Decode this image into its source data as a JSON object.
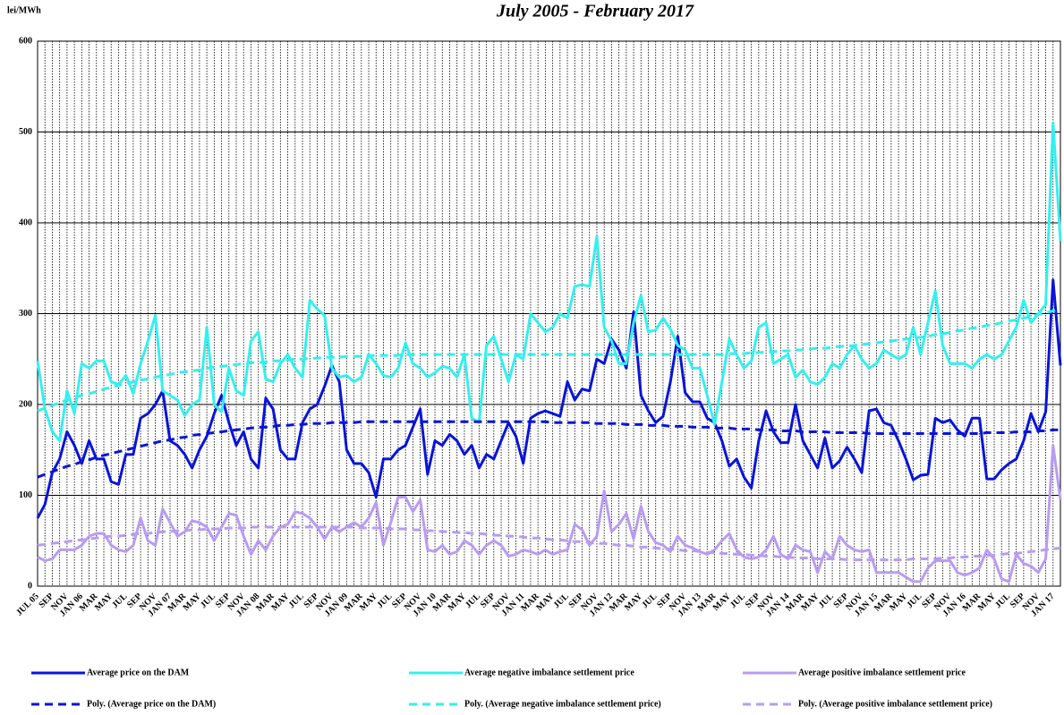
{
  "chart_data": {
    "type": "line",
    "title": "July 2005 - February 2017",
    "y_label": "lei/MWh",
    "ylim": [
      0,
      600
    ],
    "yticks": [
      0,
      100,
      200,
      300,
      400,
      500,
      600
    ],
    "grid": true,
    "categories": [
      "JUL 05",
      null,
      "SEP",
      null,
      "NOV",
      null,
      "JAN 06",
      null,
      "MAR",
      null,
      "MAY",
      null,
      "JUL",
      null,
      "SEP",
      null,
      "NOV",
      null,
      "JAN 07",
      null,
      "MAR",
      null,
      "MAY",
      null,
      "JUL",
      null,
      "SEP",
      null,
      "NOV",
      null,
      "JAN 08",
      null,
      "MAR",
      null,
      "MAY",
      null,
      "JUL",
      null,
      "SEP",
      null,
      "NOV",
      null,
      "JAN 09",
      null,
      "MAR",
      null,
      "MAY",
      null,
      "JUL",
      null,
      "SEP",
      null,
      "NOV",
      null,
      "JAN 10",
      null,
      "MAR",
      null,
      "MAY",
      null,
      "JUL",
      null,
      "SEP",
      null,
      "NOV",
      null,
      "JAN 11",
      null,
      "MAR",
      null,
      "MAY",
      null,
      "JUL",
      null,
      "SEP",
      null,
      "NOV",
      null,
      "JAN 12",
      null,
      "MAR",
      null,
      "MAY",
      null,
      "JUL",
      null,
      "SEP",
      null,
      "NOV",
      null,
      "JAN 13",
      null,
      "MAR",
      null,
      "MAY",
      null,
      "JUL",
      null,
      "SEP",
      null,
      "NOV",
      null,
      "JAN 14",
      null,
      "MAR",
      null,
      "MAY",
      null,
      "JUL",
      null,
      "SEP",
      null,
      "NOV",
      null,
      "JAN 15",
      null,
      "MAR",
      null,
      "MAY",
      null,
      "JUL",
      null,
      "SEP",
      null,
      "NOV",
      null,
      "JAN 16",
      null,
      "MAR",
      null,
      "MAY",
      null,
      "JUL",
      null,
      "SEP",
      null,
      "NOV",
      null,
      "JAN 17",
      null
    ],
    "series": [
      {
        "name": "Average price on the DAM",
        "color": "#0a14d8",
        "dashed": false,
        "values": [
          75,
          90,
          125,
          140,
          170,
          155,
          135,
          160,
          140,
          140,
          115,
          112,
          145,
          145,
          185,
          190,
          200,
          215,
          160,
          155,
          145,
          130,
          150,
          165,
          190,
          210,
          180,
          155,
          170,
          140,
          130,
          207,
          195,
          150,
          140,
          140,
          180,
          195,
          200,
          220,
          243,
          225,
          150,
          135,
          135,
          125,
          98,
          140,
          140,
          150,
          155,
          175,
          195,
          123,
          160,
          155,
          167,
          160,
          145,
          155,
          130,
          145,
          140,
          160,
          180,
          165,
          135,
          185,
          190,
          193,
          190,
          187,
          225,
          205,
          217,
          215,
          250,
          245,
          272,
          260,
          240,
          302,
          210,
          193,
          180,
          187,
          225,
          275,
          213,
          203,
          203,
          185,
          180,
          160,
          132,
          140,
          120,
          108,
          160,
          193,
          170,
          158,
          158,
          200,
          160,
          145,
          130,
          163,
          130,
          138,
          153,
          140,
          125,
          193,
          195,
          180,
          177,
          160,
          140,
          117,
          122,
          123,
          185,
          180,
          183,
          172,
          165,
          185,
          185,
          118,
          118,
          128,
          135,
          140,
          160,
          190,
          170,
          192,
          337,
          243
        ]
      },
      {
        "name": "Average negative imbalance settlement price",
        "color": "#33f0ee",
        "dashed": false,
        "values": [
          248,
          195,
          170,
          160,
          215,
          190,
          245,
          240,
          248,
          248,
          225,
          222,
          232,
          212,
          245,
          270,
          298,
          215,
          210,
          205,
          188,
          200,
          205,
          285,
          200,
          192,
          240,
          215,
          210,
          270,
          280,
          228,
          225,
          245,
          255,
          240,
          230,
          315,
          305,
          298,
          240,
          230,
          232,
          225,
          230,
          255,
          245,
          232,
          230,
          240,
          268,
          245,
          240,
          230,
          235,
          242,
          240,
          230,
          255,
          185,
          180,
          265,
          275,
          250,
          225,
          255,
          250,
          300,
          290,
          280,
          285,
          300,
          295,
          330,
          332,
          330,
          385,
          285,
          270,
          245,
          245,
          290,
          320,
          280,
          282,
          295,
          283,
          265,
          260,
          240,
          240,
          210,
          178,
          225,
          272,
          255,
          240,
          248,
          285,
          290,
          245,
          250,
          255,
          230,
          238,
          225,
          222,
          230,
          245,
          240,
          255,
          265,
          250,
          240,
          245,
          260,
          255,
          250,
          255,
          285,
          255,
          290,
          325,
          265,
          245,
          245,
          245,
          240,
          250,
          255,
          250,
          255,
          270,
          285,
          315,
          290,
          300,
          310,
          510,
          380
        ]
      },
      {
        "name": "Average positive imbalance settlement price",
        "color": "#b89cf2",
        "dashed": false,
        "values": [
          32,
          28,
          30,
          40,
          40,
          40,
          45,
          55,
          58,
          58,
          45,
          40,
          38,
          45,
          75,
          50,
          45,
          85,
          70,
          55,
          60,
          72,
          70,
          65,
          50,
          65,
          80,
          78,
          55,
          35,
          50,
          40,
          55,
          65,
          68,
          82,
          80,
          75,
          65,
          52,
          65,
          60,
          65,
          70,
          65,
          75,
          92,
          45,
          70,
          98,
          98,
          82,
          95,
          40,
          38,
          45,
          35,
          38,
          50,
          45,
          35,
          45,
          50,
          45,
          33,
          35,
          40,
          38,
          35,
          40,
          35,
          38,
          40,
          68,
          62,
          45,
          55,
          105,
          60,
          68,
          80,
          52,
          88,
          60,
          48,
          45,
          38,
          55,
          45,
          42,
          38,
          35,
          40,
          50,
          58,
          40,
          32,
          30,
          32,
          40,
          55,
          35,
          30,
          45,
          40,
          38,
          15,
          38,
          30,
          55,
          45,
          40,
          38,
          40,
          15,
          15,
          15,
          15,
          10,
          5,
          5,
          20,
          28,
          28,
          28,
          15,
          12,
          15,
          20,
          40,
          30,
          8,
          5,
          35,
          25,
          22,
          15,
          30,
          155,
          95
        ]
      },
      {
        "name": "Poly. (Average price on the DAM)",
        "color": "#0a14d8",
        "dashed": true,
        "values": [
          120,
          123,
          126,
          129,
          132,
          134,
          137,
          139,
          142,
          144,
          146,
          148,
          150,
          152,
          154,
          156,
          158,
          160,
          161,
          163,
          164,
          166,
          167,
          168,
          169,
          170,
          171,
          172,
          173,
          174,
          175,
          175,
          176,
          177,
          177,
          178,
          178,
          179,
          179,
          179,
          180,
          180,
          180,
          180,
          181,
          181,
          181,
          181,
          181,
          181,
          181,
          181,
          181,
          181,
          181,
          181,
          181,
          181,
          181,
          181,
          181,
          181,
          181,
          181,
          181,
          181,
          181,
          181,
          181,
          181,
          180,
          180,
          180,
          180,
          180,
          180,
          179,
          179,
          179,
          179,
          178,
          178,
          178,
          177,
          177,
          177,
          176,
          176,
          176,
          175,
          175,
          175,
          174,
          174,
          174,
          173,
          173,
          173,
          172,
          172,
          172,
          171,
          171,
          171,
          170,
          170,
          170,
          170,
          169,
          169,
          169,
          169,
          169,
          168,
          168,
          168,
          168,
          168,
          168,
          168,
          168,
          168,
          168,
          168,
          168,
          168,
          168,
          168,
          168,
          169,
          169,
          169,
          169,
          170,
          170,
          170,
          171,
          171,
          172,
          172
        ]
      },
      {
        "name": "Poly. (Average negative imbalance settlement price)",
        "color": "#33f0ee",
        "dashed": true,
        "values": [
          193,
          196,
          199,
          202,
          205,
          207,
          210,
          212,
          214,
          217,
          219,
          221,
          223,
          225,
          227,
          228,
          230,
          232,
          233,
          235,
          236,
          237,
          238,
          240,
          241,
          242,
          243,
          244,
          245,
          246,
          246,
          247,
          248,
          248,
          249,
          250,
          250,
          251,
          251,
          252,
          252,
          252,
          253,
          253,
          253,
          254,
          254,
          254,
          254,
          254,
          255,
          255,
          255,
          255,
          255,
          255,
          255,
          255,
          255,
          255,
          255,
          255,
          255,
          255,
          255,
          255,
          255,
          255,
          255,
          255,
          255,
          255,
          255,
          255,
          255,
          255,
          255,
          255,
          255,
          255,
          255,
          255,
          255,
          255,
          255,
          255,
          255,
          255,
          255,
          255,
          255,
          255,
          255,
          255,
          256,
          256,
          256,
          257,
          257,
          258,
          258,
          259,
          259,
          260,
          260,
          261,
          262,
          262,
          263,
          264,
          264,
          265,
          266,
          267,
          268,
          269,
          270,
          271,
          272,
          273,
          274,
          275,
          277,
          278,
          279,
          281,
          282,
          284,
          285,
          287,
          288,
          290,
          292,
          293,
          295,
          297,
          299,
          301,
          303,
          305
        ]
      },
      {
        "name": "Poly. (Average positive imbalance settlement price)",
        "color": "#b89cf2",
        "dashed": true,
        "values": [
          45,
          46,
          47,
          48,
          49,
          50,
          51,
          52,
          53,
          54,
          55,
          55,
          56,
          57,
          58,
          58,
          59,
          60,
          60,
          61,
          61,
          62,
          62,
          63,
          63,
          63,
          64,
          64,
          64,
          65,
          65,
          65,
          65,
          65,
          65,
          65,
          65,
          65,
          65,
          65,
          65,
          65,
          65,
          65,
          64,
          64,
          64,
          64,
          63,
          63,
          63,
          62,
          62,
          61,
          61,
          60,
          60,
          59,
          59,
          58,
          58,
          57,
          56,
          56,
          55,
          55,
          54,
          53,
          53,
          52,
          51,
          51,
          50,
          49,
          49,
          48,
          47,
          47,
          46,
          45,
          45,
          44,
          43,
          43,
          42,
          41,
          41,
          40,
          39,
          39,
          38,
          37,
          37,
          36,
          36,
          35,
          35,
          34,
          34,
          33,
          33,
          32,
          32,
          31,
          31,
          31,
          30,
          30,
          30,
          30,
          29,
          29,
          29,
          29,
          29,
          29,
          29,
          29,
          29,
          30,
          30,
          30,
          30,
          31,
          31,
          32,
          32,
          33,
          33,
          34,
          34,
          35,
          36,
          36,
          37,
          38,
          39,
          40,
          41,
          42
        ]
      }
    ]
  }
}
